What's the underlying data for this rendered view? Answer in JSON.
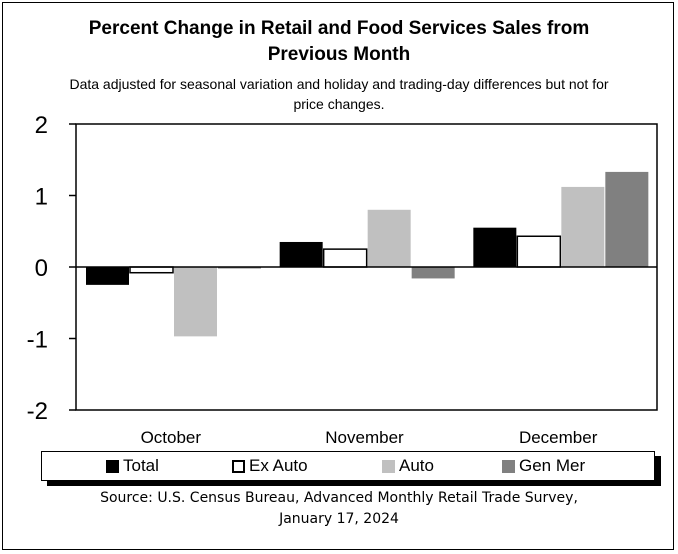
{
  "title_lines": [
    "Percent Change in Retail and Food Services Sales from",
    "Previous Month"
  ],
  "subtitle_lines": [
    "Data adjusted for seasonal variation and holiday and trading-day differences but not for",
    "price changes."
  ],
  "source_lines": [
    "Source: U.S. Census Bureau, Advanced Monthly Retail Trade Survey,",
    "January 17, 2024"
  ],
  "colors": {
    "Total": "#000000",
    "Ex Auto": "#ffffff",
    "Auto": "#c0c0c0",
    "Gen Mer": "#808080"
  },
  "chart_data": {
    "type": "bar",
    "categories": [
      "October",
      "November",
      "December"
    ],
    "series": [
      {
        "name": "Total",
        "values": [
          -0.25,
          0.35,
          0.55
        ]
      },
      {
        "name": "Ex Auto",
        "values": [
          -0.08,
          0.25,
          0.43
        ]
      },
      {
        "name": "Auto",
        "values": [
          -0.97,
          0.8,
          1.12
        ]
      },
      {
        "name": "Gen Mer",
        "values": [
          -0.02,
          -0.16,
          1.33
        ]
      }
    ],
    "yticks": [
      "2",
      "1",
      "0",
      "-1",
      "-2"
    ],
    "ylim": [
      -2,
      2
    ],
    "legend_position": "bottom",
    "grid": false
  }
}
